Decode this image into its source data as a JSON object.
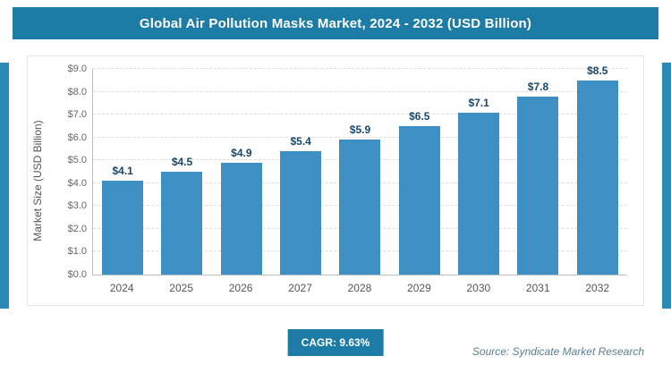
{
  "header": {
    "title": "Global Air Pollution Masks Market, 2024 - 2032 (USD Billion)"
  },
  "chart_data": {
    "type": "bar",
    "title": "Global Air Pollution Masks Market, 2024 - 2032 (USD Billion)",
    "categories": [
      "2024",
      "2025",
      "2026",
      "2027",
      "2028",
      "2029",
      "2030",
      "2031",
      "2032"
    ],
    "values": [
      4.1,
      4.5,
      4.9,
      5.4,
      5.9,
      6.5,
      7.1,
      7.8,
      8.5
    ],
    "value_labels": [
      "$4.1",
      "$4.5",
      "$4.9",
      "$5.4",
      "$5.9",
      "$6.5",
      "$7.1",
      "$7.8",
      "$8.5"
    ],
    "xlabel": "",
    "ylabel": "Market Size (USD Billion)",
    "ylim": [
      0,
      9
    ],
    "ytick_step": 1,
    "ytick_labels": [
      "$0.0",
      "$1.0",
      "$2.0",
      "$3.0",
      "$4.0",
      "$5.0",
      "$6.0",
      "$7.0",
      "$8.0",
      "$9.0"
    ],
    "grid": "horizontal-dashed",
    "legend": "none",
    "bar_color": "#3e8fc4",
    "value_label_color": "#17486b"
  },
  "footer": {
    "cagr_label": "CAGR: 9.63%",
    "source": "Source: Syndicate Market Research"
  },
  "colors": {
    "accent_teal": "#1c7ca6",
    "bar_blue": "#3e8fc4",
    "side_strip_blue": "#2a8ab5"
  }
}
